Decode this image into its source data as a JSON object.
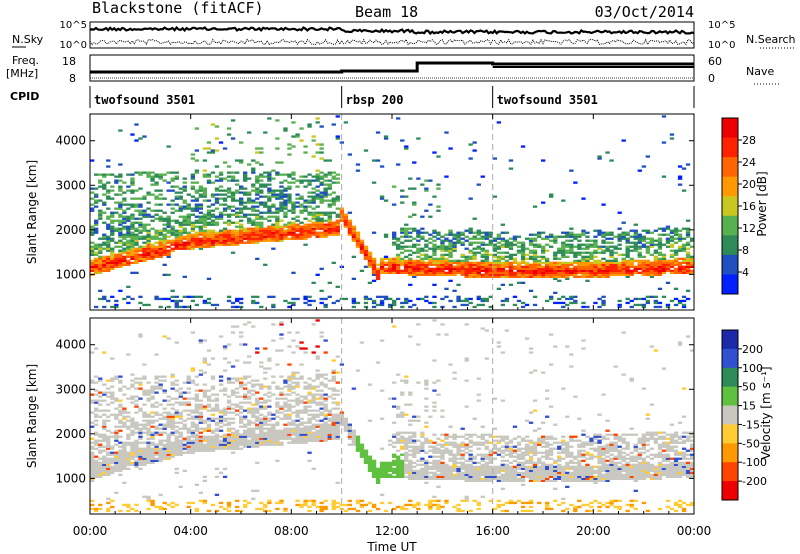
{
  "header": {
    "station": "Blackstone (fitACF)",
    "beam": "Beam 18",
    "date": "03/Oct/2014"
  },
  "noise_panel": {
    "left_label": "N.Sky",
    "right_label": "N.Search",
    "left_ticks": [
      "10^5",
      "10^0"
    ],
    "right_ticks": [
      "10^5",
      "10^0"
    ]
  },
  "freq_panel": {
    "left_label_1": "Freq.",
    "left_label_2": "[MHz]",
    "left_ticks": [
      "18",
      "8"
    ],
    "right_label": "Nave",
    "right_ticks": [
      "60",
      "0"
    ]
  },
  "cpid_panel": {
    "label": "CPID",
    "segments": [
      {
        "name": "twofsound 3501",
        "start_hour": 0
      },
      {
        "name": "rbsp 200",
        "start_hour": 10
      },
      {
        "name": "twofsound 3501",
        "start_hour": 16
      }
    ]
  },
  "colors": {
    "power_scale": [
      "#0020ff",
      "#2050c0",
      "#2e8b57",
      "#58b050",
      "#c8c820",
      "#ff9900",
      "#ff6600",
      "#ff2200",
      "#ee0000"
    ],
    "velocity_scale": [
      "#1a2aa8",
      "#3050d0",
      "#2e8b57",
      "#60c040",
      "#c8c8c0",
      "#ffcc33",
      "#ff9900",
      "#ff4400",
      "#ee0000"
    ]
  },
  "chart_data": [
    {
      "type": "heatmap",
      "ylabel": "Slant Range [km]",
      "y_ticks": [
        1000,
        2000,
        3000,
        4000
      ],
      "ylim": [
        200,
        4600
      ],
      "colorbar_label": "Power [dB]",
      "colorbar_ticks": [
        4,
        8,
        12,
        16,
        20,
        24,
        28
      ],
      "colorbar_range": [
        0,
        32
      ]
    },
    {
      "type": "heatmap",
      "ylabel": "Slant Range [km]",
      "y_ticks": [
        1000,
        2000,
        3000,
        4000
      ],
      "ylim": [
        200,
        4600
      ],
      "colorbar_label": "Velocity [m s⁻¹]",
      "colorbar_ticks": [
        "200",
        "100",
        "50",
        "15",
        "-15",
        "-50",
        "-100",
        "-200"
      ]
    }
  ],
  "x_axis": {
    "label": "Time UT",
    "ticks": [
      "00:00",
      "04:00",
      "08:00",
      "12:00",
      "16:00",
      "20:00",
      "00:00"
    ],
    "range_hours": [
      0,
      24
    ]
  }
}
